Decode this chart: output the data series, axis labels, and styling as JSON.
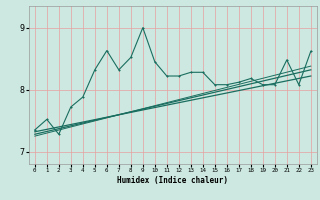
{
  "title": "",
  "xlabel": "Humidex (Indice chaleur)",
  "bg_color": "#cce8e0",
  "line_color": "#1a6e60",
  "grid_color_major": "#e8a0a0",
  "grid_color_minor": "#e8a0a0",
  "xlim": [
    -0.5,
    23.5
  ],
  "ylim": [
    6.8,
    9.35
  ],
  "yticks": [
    7,
    8,
    9
  ],
  "xticks": [
    0,
    1,
    2,
    3,
    4,
    5,
    6,
    7,
    8,
    9,
    10,
    11,
    12,
    13,
    14,
    15,
    16,
    17,
    18,
    19,
    20,
    21,
    22,
    23
  ],
  "line1_x": [
    0,
    1,
    2,
    3,
    4,
    5,
    6,
    7,
    8,
    9,
    10,
    11,
    12,
    13,
    14,
    15,
    16,
    17,
    18,
    19,
    20,
    21,
    22,
    23
  ],
  "line1_y": [
    7.35,
    7.52,
    7.28,
    7.72,
    7.88,
    8.32,
    8.63,
    8.32,
    8.52,
    9.0,
    8.45,
    8.22,
    8.22,
    8.28,
    8.28,
    8.08,
    8.08,
    8.12,
    8.18,
    8.08,
    8.08,
    8.48,
    8.08,
    8.62
  ],
  "reg1_x0": 0,
  "reg1_x1": 23,
  "reg1_y0": 7.28,
  "reg1_y1": 8.32,
  "reg2_x0": 0,
  "reg2_x1": 23,
  "reg2_y0": 7.32,
  "reg2_y1": 8.22,
  "reg3_x0": 0,
  "reg3_x1": 23,
  "reg3_y0": 7.25,
  "reg3_y1": 8.38
}
